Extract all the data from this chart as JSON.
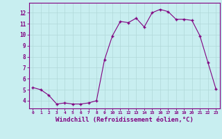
{
  "x": [
    0,
    1,
    2,
    3,
    4,
    5,
    6,
    7,
    8,
    9,
    10,
    11,
    12,
    13,
    14,
    15,
    16,
    17,
    18,
    19,
    20,
    21,
    22,
    23
  ],
  "y": [
    5.2,
    5.0,
    4.5,
    3.7,
    3.8,
    3.7,
    3.7,
    3.8,
    4.0,
    7.7,
    9.9,
    11.2,
    11.1,
    11.5,
    10.7,
    12.0,
    12.3,
    12.1,
    11.4,
    11.4,
    11.3,
    9.9,
    7.5,
    5.1
  ],
  "line_color": "#800080",
  "marker": "+",
  "marker_size": 3.5,
  "bg_color": "#c8eef0",
  "grid_color": "#b0d8d8",
  "spine_color": "#800080",
  "tick_color": "#800080",
  "label_color": "#800080",
  "xlabel": "Windchill (Refroidissement éolien,°C)",
  "xlabel_fontsize": 6.5,
  "ylim": [
    3.3,
    12.9
  ],
  "xlim": [
    -0.5,
    23.5
  ],
  "figsize": [
    3.2,
    2.0
  ],
  "dpi": 100
}
